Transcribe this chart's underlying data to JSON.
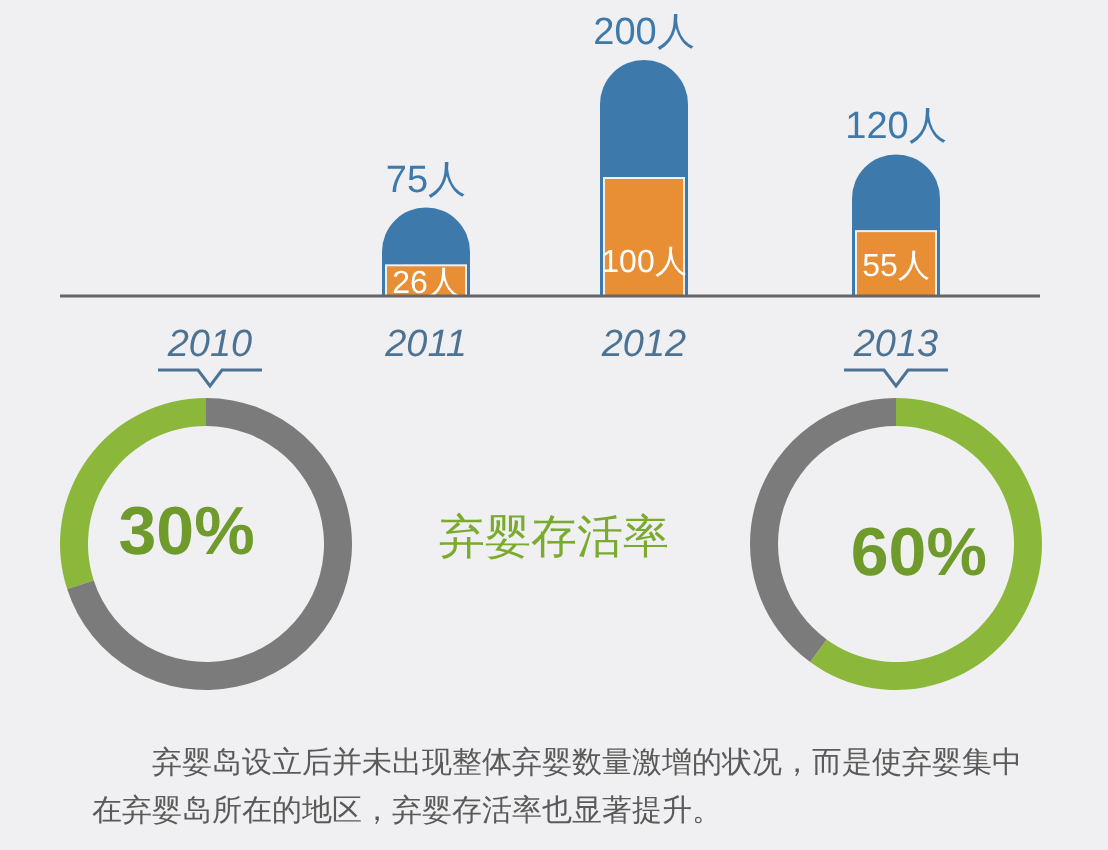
{
  "chart_data": [
    {
      "type": "bar",
      "categories": [
        "2010",
        "2011",
        "2012",
        "2013"
      ],
      "series": [
        {
          "color": "#3d7aab",
          "values": [
            null,
            75,
            200,
            120
          ],
          "value_labels": [
            null,
            "75人",
            "200人",
            "120人"
          ]
        },
        {
          "color": "#e88f35",
          "values": [
            null,
            26,
            100,
            55
          ],
          "value_labels": [
            null,
            "26人",
            "100人",
            "55人"
          ]
        }
      ]
    },
    {
      "type": "donut",
      "categories": [
        null,
        null
      ],
      "values": [
        30,
        70
      ],
      "colors": [
        "#8bb83a",
        "#7b7b7b"
      ],
      "value_labels": [
        "30%",
        null
      ]
    },
    {
      "type": "donut",
      "categories": [
        null,
        null
      ],
      "values": [
        60,
        40
      ],
      "colors": [
        "#8bb83a",
        "#7b7b7b"
      ],
      "value_labels": [
        "60%",
        null
      ]
    },
    {
      "type": "other",
      "title": "弃婴存活率",
      "annotations": [
        "弃婴岛设立后并未出现整体弃婴数量激增的状况，而是使弃婴集中在弃婴岛所在的地区，弃婴存活率也显著提升。"
      ]
    }
  ]
}
